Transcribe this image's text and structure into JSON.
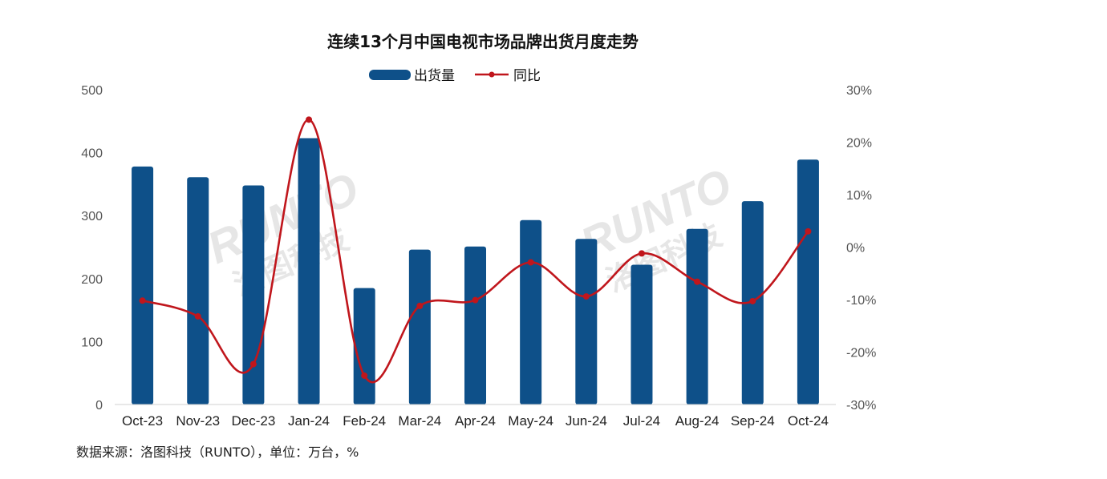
{
  "chart_data": {
    "type": "bar",
    "title": "连续13个月中国电视市场品牌出货月度走势",
    "categories": [
      "Oct-23",
      "Nov-23",
      "Dec-23",
      "Jan-24",
      "Feb-24",
      "Mar-24",
      "Apr-24",
      "May-24",
      "Jun-24",
      "Jul-24",
      "Aug-24",
      "Sep-24",
      "Oct-24"
    ],
    "series": [
      {
        "name": "出货量",
        "type": "bar",
        "axis": "left",
        "values": [
          378,
          361,
          348,
          423,
          185,
          246,
          251,
          293,
          263,
          222,
          279,
          323,
          389
        ]
      },
      {
        "name": "同比",
        "type": "line",
        "axis": "right",
        "values": [
          -10.2,
          -13.2,
          -22.3,
          24.3,
          -24.5,
          -11.2,
          -10.1,
          -2.9,
          -9.4,
          -1.2,
          -6.6,
          -10.3,
          3.0
        ]
      }
    ],
    "left_axis": {
      "ylim": [
        0,
        500
      ],
      "ticks": [
        "0",
        "100",
        "200",
        "300",
        "400",
        "500"
      ]
    },
    "right_axis": {
      "ylim": [
        -30,
        30
      ],
      "ticks": [
        "-30%",
        "-20%",
        "-10%",
        "0%",
        "10%",
        "20%",
        "30%"
      ]
    },
    "legend": "top",
    "grid": false,
    "colors": {
      "bar": "#0e5089",
      "line": "#c0161c"
    }
  },
  "footer": {
    "source": "数据来源：洛图科技（RUNTO），单位：万台，%"
  },
  "watermark": {
    "brand": "RUNTO",
    "chinese": "洛图科技"
  }
}
